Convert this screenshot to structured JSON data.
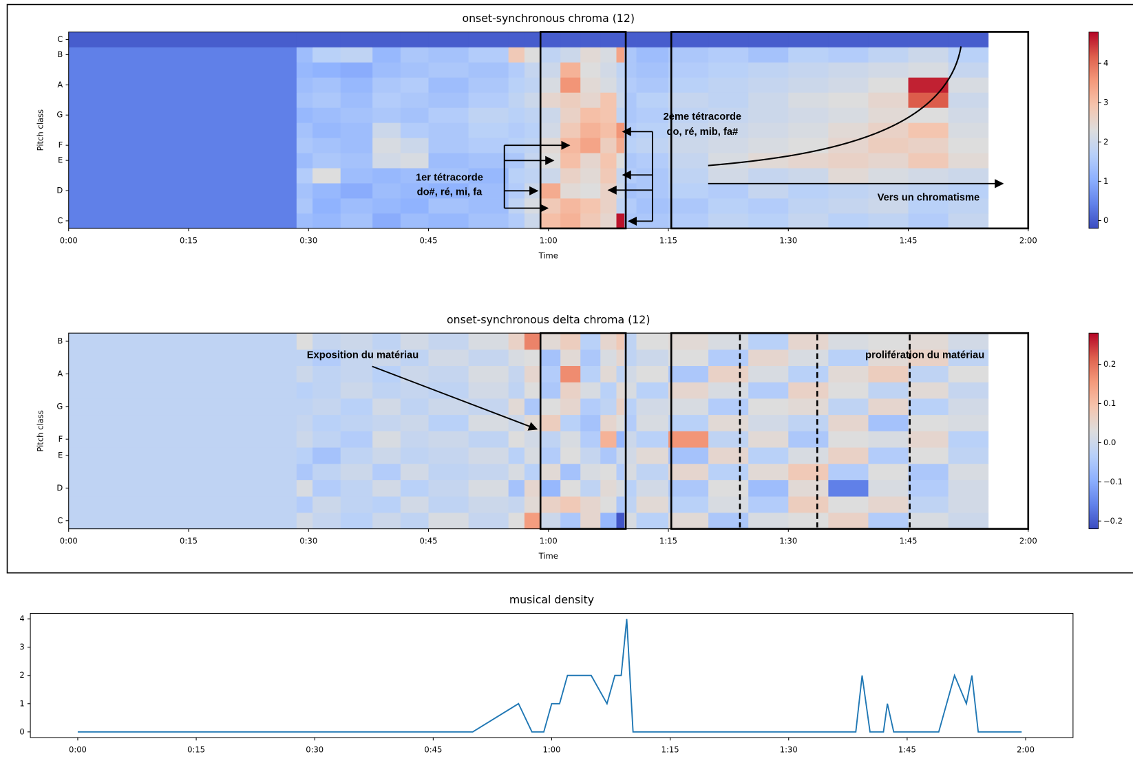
{
  "chart_data": [
    {
      "type": "heatmap",
      "title": "onset-synchronous chroma (12)",
      "xlabel": "Time",
      "ylabel": "Pitch class",
      "colormap": "coolwarm",
      "xlim": [
        0,
        120
      ],
      "xticks": [
        {
          "value": 0,
          "label": "0:00"
        },
        {
          "value": 15,
          "label": "0:15"
        },
        {
          "value": 30,
          "label": "0:30"
        },
        {
          "value": 45,
          "label": "0:45"
        },
        {
          "value": 60,
          "label": "1:00"
        },
        {
          "value": 75,
          "label": "1:15"
        },
        {
          "value": 90,
          "label": "1:30"
        },
        {
          "value": 105,
          "label": "1:45"
        },
        {
          "value": 120,
          "label": "2:00"
        }
      ],
      "ylim": [
        -0.5,
        12.5
      ],
      "yticks": [
        {
          "value": 0,
          "label": "C"
        },
        {
          "value": 2,
          "label": "D"
        },
        {
          "value": 4,
          "label": "E"
        },
        {
          "value": 5,
          "label": "F"
        },
        {
          "value": 7,
          "label": "G"
        },
        {
          "value": 9,
          "label": "A"
        },
        {
          "value": 11,
          "label": "B"
        },
        {
          "value": 12,
          "label": "C"
        }
      ],
      "zlim": [
        -0.2,
        4.8
      ],
      "zticks": [
        0,
        1,
        2,
        3,
        4
      ],
      "x_edges": [
        0,
        28.5,
        30.5,
        34,
        38,
        41.5,
        45,
        50,
        55,
        57,
        59,
        61.5,
        64,
        66.5,
        68.5,
        69.5,
        71,
        75,
        80,
        85,
        90,
        95,
        100,
        105,
        110,
        115,
        120
      ],
      "values": [
        [
          0.4,
          1.3,
          1.2,
          1.4,
          1.0,
          1.3,
          1.2,
          1.4,
          1.6,
          2.0,
          3.0,
          3.2,
          2.8,
          2.5,
          4.7,
          1.5,
          1.5,
          1.6,
          1.8,
          1.7,
          1.9,
          1.7,
          1.8,
          1.6,
          1.9
        ],
        [
          0.4,
          1.5,
          1.1,
          1.3,
          1.2,
          1.1,
          1.4,
          1.3,
          1.8,
          2.2,
          2.8,
          3.1,
          2.9,
          2.6,
          1.8,
          1.6,
          1.4,
          1.5,
          1.7,
          1.6,
          1.8,
          1.9,
          2.0,
          1.7,
          1.8
        ],
        [
          0.4,
          1.4,
          1.2,
          1.0,
          1.3,
          1.2,
          1.1,
          1.3,
          1.6,
          2.0,
          3.3,
          2.4,
          2.3,
          2.6,
          2.0,
          1.4,
          1.5,
          1.7,
          1.6,
          1.9,
          1.7,
          1.8,
          1.9,
          1.8,
          1.7
        ],
        [
          0.4,
          1.6,
          2.3,
          1.3,
          1.2,
          1.3,
          1.4,
          1.2,
          1.7,
          1.8,
          2.0,
          2.6,
          2.4,
          2.8,
          1.9,
          1.6,
          1.5,
          1.8,
          2.1,
          1.9,
          2.0,
          2.4,
          2.2,
          2.1,
          2.0
        ],
        [
          0.4,
          1.3,
          1.5,
          1.4,
          2.1,
          2.2,
          1.3,
          1.4,
          1.5,
          1.9,
          2.3,
          3.0,
          2.5,
          2.9,
          2.3,
          1.5,
          1.6,
          1.9,
          2.2,
          2.4,
          2.5,
          2.6,
          2.5,
          2.8,
          2.4
        ],
        [
          0.4,
          1.5,
          1.4,
          1.3,
          2.2,
          2.0,
          1.5,
          1.6,
          1.7,
          1.8,
          2.4,
          3.1,
          3.4,
          2.7,
          3.3,
          1.7,
          1.8,
          2.0,
          2.1,
          2.2,
          2.3,
          2.5,
          2.7,
          2.6,
          2.3
        ],
        [
          0.4,
          1.4,
          1.2,
          1.3,
          2.0,
          1.6,
          1.5,
          1.7,
          1.6,
          1.7,
          2.1,
          2.8,
          3.2,
          3.0,
          3.6,
          1.6,
          1.7,
          1.9,
          2.0,
          2.1,
          2.2,
          2.4,
          2.6,
          2.9,
          2.2
        ],
        [
          0.4,
          1.2,
          1.3,
          1.4,
          1.5,
          1.4,
          1.6,
          1.8,
          1.7,
          1.8,
          2.0,
          2.6,
          3.0,
          2.9,
          1.8,
          1.5,
          1.6,
          1.8,
          1.9,
          2.0,
          2.1,
          2.2,
          2.4,
          2.3,
          2.1
        ],
        [
          0.4,
          1.4,
          1.5,
          1.3,
          1.6,
          1.5,
          1.4,
          1.6,
          1.8,
          2.0,
          2.5,
          2.7,
          2.5,
          2.9,
          2.0,
          1.5,
          1.7,
          1.9,
          1.8,
          2.0,
          2.2,
          2.3,
          2.5,
          4.2,
          2.0
        ],
        [
          0.4,
          1.3,
          1.4,
          1.2,
          1.5,
          1.6,
          1.3,
          1.5,
          1.7,
          1.8,
          2.2,
          3.6,
          2.4,
          2.2,
          1.9,
          1.6,
          1.5,
          1.7,
          1.8,
          1.9,
          2.0,
          2.1,
          2.3,
          4.6,
          2.2
        ],
        [
          0.4,
          1.2,
          1.1,
          1.0,
          1.3,
          1.4,
          1.5,
          1.4,
          1.6,
          1.9,
          2.0,
          3.2,
          2.3,
          2.1,
          1.8,
          1.5,
          1.4,
          1.6,
          1.7,
          1.8,
          1.9,
          2.0,
          2.1,
          2.2,
          1.9
        ],
        [
          0.4,
          1.3,
          1.7,
          1.8,
          1.2,
          1.5,
          1.4,
          1.6,
          2.8,
          2.3,
          1.8,
          2.0,
          2.4,
          2.2,
          3.4,
          1.5,
          1.3,
          1.5,
          1.6,
          1.4,
          1.7,
          1.6,
          1.8,
          2.0,
          1.7
        ],
        [
          0,
          0,
          0,
          0,
          0,
          0,
          0,
          0,
          0,
          0,
          0,
          0,
          0,
          0,
          0,
          0,
          0,
          0,
          0,
          0,
          0,
          0,
          0,
          0,
          0
        ]
      ],
      "annotations": [
        "1er tétracorde",
        "do#, ré, mi, fa",
        "2ème tétracorde",
        "do, ré, mib, fa#",
        "Vers un chromatisme"
      ]
    },
    {
      "type": "heatmap",
      "title": "onset-synchronous delta chroma (12)",
      "xlabel": "Time",
      "ylabel": "Pitch class",
      "colormap": "coolwarm",
      "xlim": [
        0,
        120
      ],
      "xticks": [
        {
          "value": 0,
          "label": "0:00"
        },
        {
          "value": 15,
          "label": "0:15"
        },
        {
          "value": 30,
          "label": "0:30"
        },
        {
          "value": 45,
          "label": "0:45"
        },
        {
          "value": 60,
          "label": "1:00"
        },
        {
          "value": 75,
          "label": "1:15"
        },
        {
          "value": 90,
          "label": "1:30"
        },
        {
          "value": 105,
          "label": "1:45"
        },
        {
          "value": 120,
          "label": "2:00"
        }
      ],
      "ylim": [
        -0.5,
        11.5
      ],
      "yticks": [
        {
          "value": 0,
          "label": "C"
        },
        {
          "value": 2,
          "label": "D"
        },
        {
          "value": 4,
          "label": "E"
        },
        {
          "value": 5,
          "label": "F"
        },
        {
          "value": 7,
          "label": "G"
        },
        {
          "value": 9,
          "label": "A"
        },
        {
          "value": 11,
          "label": "B"
        }
      ],
      "zlim": [
        -0.22,
        0.28
      ],
      "zticks": [
        {
          "value": -0.2,
          "label": "−0.2"
        },
        {
          "value": -0.1,
          "label": "−0.1"
        },
        {
          "value": 0,
          "label": "0.0"
        },
        0.1,
        0.2
      ],
      "x_edges": [
        0,
        28.5,
        30.5,
        34,
        38,
        41.5,
        45,
        50,
        55,
        57,
        59,
        61.5,
        64,
        66.5,
        68.5,
        69.5,
        71,
        75,
        80,
        85,
        90,
        95,
        100,
        105,
        110,
        115,
        120
      ],
      "values": [
        [
          -0.02,
          0.01,
          -0.01,
          -0.03,
          0.0,
          -0.02,
          0.02,
          -0.01,
          0.03,
          0.15,
          0.0,
          -0.05,
          0.05,
          -0.08,
          -0.21,
          0.02,
          -0.03,
          0.04,
          -0.05,
          0.02,
          0.03,
          0.06,
          -0.04,
          0.02,
          0.0
        ],
        [
          -0.02,
          -0.04,
          0.0,
          -0.02,
          -0.03,
          0.01,
          -0.02,
          0.0,
          -0.01,
          0.04,
          0.06,
          0.08,
          0.05,
          0.03,
          -0.05,
          -0.02,
          0.04,
          -0.03,
          0.02,
          -0.04,
          0.07,
          0.03,
          0.05,
          -0.02,
          0.01
        ],
        [
          -0.02,
          0.02,
          -0.04,
          -0.02,
          0.01,
          -0.03,
          -0.01,
          0.02,
          -0.06,
          0.05,
          -0.08,
          0.03,
          -0.02,
          0.04,
          0.02,
          -0.03,
          0.01,
          -0.05,
          0.03,
          -0.07,
          0.04,
          -0.16,
          0.02,
          -0.04,
          0.01
        ],
        [
          -0.02,
          -0.05,
          -0.02,
          0.0,
          -0.04,
          0.01,
          -0.02,
          -0.01,
          0.02,
          -0.03,
          0.04,
          -0.06,
          0.02,
          0.03,
          -0.04,
          0.02,
          -0.02,
          0.05,
          -0.03,
          0.04,
          0.08,
          -0.04,
          0.03,
          -0.05,
          0.02
        ],
        [
          -0.02,
          -0.03,
          -0.06,
          -0.02,
          0.0,
          -0.02,
          -0.01,
          0.01,
          -0.03,
          0.02,
          -0.04,
          0.03,
          -0.01,
          -0.05,
          0.0,
          0.01,
          0.04,
          -0.06,
          0.05,
          -0.03,
          0.02,
          0.06,
          -0.04,
          0.03,
          -0.02
        ],
        [
          -0.02,
          0.0,
          -0.02,
          -0.04,
          0.02,
          -0.01,
          0.0,
          -0.02,
          0.03,
          0.01,
          -0.02,
          0.02,
          -0.04,
          0.12,
          -0.08,
          0.0,
          -0.03,
          0.16,
          -0.02,
          0.04,
          -0.05,
          0.03,
          0.02,
          0.05,
          -0.03
        ],
        [
          -0.02,
          -0.01,
          -0.03,
          -0.02,
          -0.01,
          0.0,
          -0.03,
          0.02,
          0.0,
          0.04,
          0.07,
          -0.03,
          -0.06,
          0.05,
          0.03,
          -0.04,
          0.02,
          -0.03,
          0.04,
          0.01,
          -0.02,
          0.05,
          -0.06,
          0.03,
          0.02
        ],
        [
          -0.02,
          -0.02,
          -0.01,
          -0.03,
          0.01,
          -0.02,
          0.0,
          -0.01,
          0.04,
          -0.05,
          0.03,
          0.05,
          -0.04,
          -0.02,
          0.06,
          -0.03,
          0.01,
          0.02,
          -0.04,
          0.03,
          0.04,
          -0.02,
          0.05,
          -0.03,
          0.01
        ],
        [
          -0.02,
          -0.03,
          -0.02,
          0.0,
          -0.02,
          -0.01,
          -0.02,
          0.01,
          -0.02,
          0.03,
          -0.05,
          0.06,
          0.02,
          -0.03,
          0.04,
          0.02,
          -0.03,
          0.05,
          0.02,
          -0.04,
          0.06,
          0.03,
          -0.02,
          0.04,
          -0.01
        ],
        [
          -0.02,
          0.0,
          -0.02,
          -0.01,
          -0.03,
          0.0,
          -0.01,
          0.02,
          -0.01,
          0.05,
          -0.04,
          0.17,
          -0.03,
          0.04,
          -0.02,
          0.01,
          0.03,
          -0.05,
          0.06,
          0.02,
          -0.03,
          0.04,
          0.07,
          -0.02,
          0.03
        ],
        [
          -0.02,
          -0.02,
          -0.04,
          -0.01,
          0.0,
          -0.02,
          0.01,
          -0.01,
          0.02,
          0.03,
          -0.06,
          0.04,
          -0.05,
          0.02,
          0.05,
          -0.02,
          0.0,
          0.03,
          -0.04,
          0.05,
          0.02,
          -0.03,
          0.04,
          0.06,
          -0.02
        ],
        [
          -0.02,
          0.03,
          -0.01,
          0.0,
          -0.02,
          0.01,
          -0.01,
          0.02,
          0.06,
          0.18,
          0.04,
          0.07,
          -0.03,
          0.05,
          0.08,
          -0.02,
          0.03,
          0.04,
          0.02,
          -0.03,
          0.05,
          0.02,
          0.03,
          0.04,
          0.01
        ]
      ],
      "annotations": [
        "Exposition du matériau",
        "prolifération du matériau"
      ]
    },
    {
      "type": "line",
      "title": "musical density",
      "color": "#1f77b4",
      "xlim": [
        -6,
        126
      ],
      "xticks": [
        {
          "value": 0,
          "label": "0:00"
        },
        {
          "value": 15,
          "label": "0:15"
        },
        {
          "value": 30,
          "label": "0:30"
        },
        {
          "value": 45,
          "label": "0:45"
        },
        {
          "value": 60,
          "label": "1:00"
        },
        {
          "value": 75,
          "label": "1:15"
        },
        {
          "value": 90,
          "label": "1:30"
        },
        {
          "value": 105,
          "label": "1:45"
        },
        {
          "value": 120,
          "label": "2:00"
        }
      ],
      "ylim": [
        -0.2,
        4.2
      ],
      "yticks": [
        0,
        1,
        2,
        3,
        4
      ],
      "x": [
        0,
        50,
        55.8,
        57.5,
        59,
        60,
        61,
        62,
        65,
        67,
        68,
        68.8,
        69.5,
        70.3,
        98.5,
        99.3,
        100.3,
        102,
        102.5,
        103.3,
        109,
        111,
        112.5,
        113.2,
        114,
        119.5
      ],
      "values": [
        0,
        0,
        1,
        0,
        0,
        1,
        1,
        2,
        2,
        1,
        2,
        2,
        4,
        0,
        0,
        2,
        0,
        0,
        1,
        0,
        0,
        2,
        1,
        2,
        0,
        0
      ]
    }
  ]
}
